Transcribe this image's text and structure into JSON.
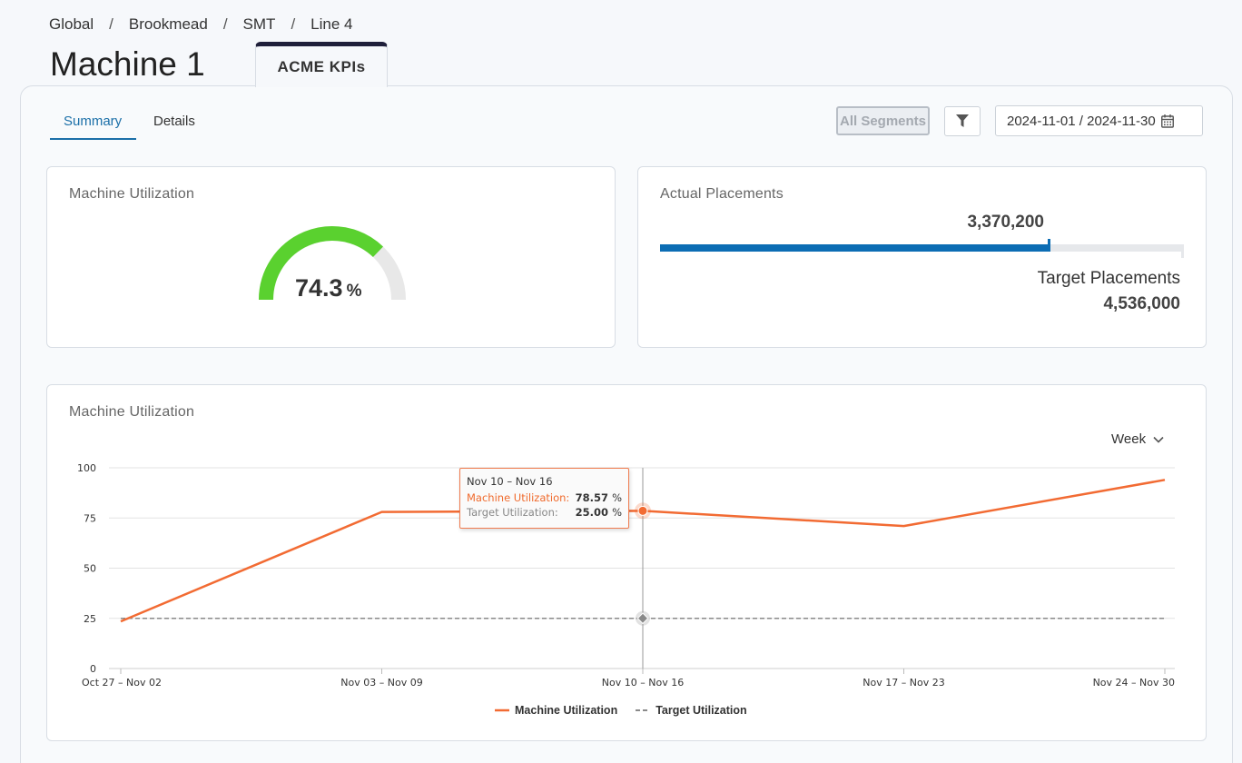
{
  "breadcrumb": [
    "Global",
    "Brookmead",
    "SMT",
    "Line 4"
  ],
  "page_title": "Machine 1",
  "top_tab": "ACME KPIs",
  "tabs": {
    "summary": "Summary",
    "details": "Details"
  },
  "toolbar": {
    "segments_label": "All Segments",
    "filter_icon": "filter-icon",
    "date_range": "2024-11-01 / 2024-11-30",
    "calendar_icon": "calendar-icon"
  },
  "utilization_card": {
    "title": "Machine Utilization",
    "value": "74.3",
    "unit": "%",
    "gauge_fraction": 0.743,
    "gauge_color": "#5ad12f"
  },
  "placements_card": {
    "title": "Actual Placements",
    "actual": "3,370,200",
    "target_label": "Target Placements",
    "target": "4,536,000",
    "fill_fraction": 0.743,
    "bar_color": "#0c6db4"
  },
  "trend_card": {
    "title": "Machine Utilization",
    "period_select": "Week",
    "tooltip": {
      "period": "Nov 10 – Nov 16",
      "mu_label": "Machine Utilization:",
      "mu_value": "78.57",
      "tu_label": "Target Utilization:",
      "tu_value": "25.00",
      "unit": "%"
    },
    "legend": {
      "mu": "Machine Utilization",
      "tu": "Target Utilization"
    }
  },
  "chart_data": {
    "type": "line",
    "categories": [
      "Oct 27 – Nov 02",
      "Nov 03 – Nov 09",
      "Nov 10 – Nov 16",
      "Nov 17 – Nov 23",
      "Nov 24 – Nov 30"
    ],
    "series": [
      {
        "name": "Machine Utilization",
        "values": [
          23.5,
          78,
          78.57,
          71,
          94
        ],
        "color": "#f26b33",
        "dash": false
      },
      {
        "name": "Target Utilization",
        "values": [
          25,
          25,
          25,
          25,
          25
        ],
        "color": "#8a8a8a",
        "dash": true
      }
    ],
    "yticks": [
      0,
      25,
      50,
      75,
      100
    ],
    "ylim": [
      0,
      100
    ],
    "grid": true,
    "legend_position": "bottom",
    "highlight_index": 2
  }
}
